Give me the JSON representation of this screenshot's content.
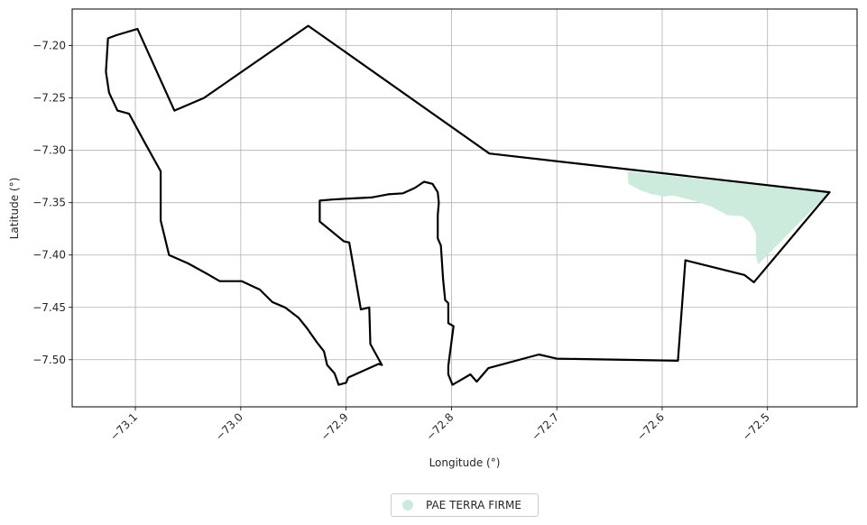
{
  "chart_data": {
    "type": "map",
    "xlabel": "Longitude (°)",
    "ylabel": "Latitude (°)",
    "xlim": [
      -73.16,
      -72.415
    ],
    "ylim": [
      -7.545,
      -7.165
    ],
    "xticks": [
      -73.1,
      -73.0,
      -72.9,
      -72.8,
      -72.7,
      -72.6,
      -72.5
    ],
    "xtick_labels": [
      "−73.1",
      "−73.0",
      "−72.9",
      "−72.8",
      "−72.7",
      "−72.6",
      "−72.5"
    ],
    "yticks": [
      -7.2,
      -7.25,
      -7.3,
      -7.35,
      -7.4,
      -7.45,
      -7.5
    ],
    "ytick_labels": [
      "−7.20",
      "−7.25",
      "−7.30",
      "−7.35",
      "−7.40",
      "−7.45",
      "−7.50"
    ],
    "grid": true,
    "legend": {
      "placement": "bottom-center",
      "entries": [
        {
          "label": "PAE TERRA FIRME",
          "color": "#cdebdc"
        }
      ]
    },
    "boundary": {
      "color": "#000000",
      "coords": [
        [
          -73.098,
          -7.184
        ],
        [
          -73.063,
          -7.262
        ],
        [
          -73.035,
          -7.25
        ],
        [
          -72.936,
          -7.181
        ],
        [
          -72.764,
          -7.303
        ],
        [
          -72.441,
          -7.34
        ],
        [
          -72.513,
          -7.426
        ],
        [
          -72.522,
          -7.419
        ],
        [
          -72.578,
          -7.405
        ],
        [
          -72.585,
          -7.5
        ],
        [
          -72.585,
          -7.501
        ],
        [
          -72.7,
          -7.499
        ],
        [
          -72.717,
          -7.495
        ],
        [
          -72.765,
          -7.508
        ],
        [
          -72.776,
          -7.521
        ],
        [
          -72.782,
          -7.514
        ],
        [
          -72.799,
          -7.524
        ],
        [
          -72.803,
          -7.514
        ],
        [
          -72.803,
          -7.506
        ],
        [
          -72.798,
          -7.468
        ],
        [
          -72.803,
          -7.465
        ],
        [
          -72.803,
          -7.446
        ],
        [
          -72.806,
          -7.443
        ],
        [
          -72.808,
          -7.423
        ],
        [
          -72.81,
          -7.391
        ],
        [
          -72.813,
          -7.384
        ],
        [
          -72.813,
          -7.362
        ],
        [
          -72.812,
          -7.35
        ],
        [
          -72.813,
          -7.34
        ],
        [
          -72.818,
          -7.332
        ],
        [
          -72.826,
          -7.33
        ],
        [
          -72.835,
          -7.336
        ],
        [
          -72.846,
          -7.341
        ],
        [
          -72.86,
          -7.342
        ],
        [
          -72.876,
          -7.345
        ],
        [
          -72.897,
          -7.346
        ],
        [
          -72.913,
          -7.347
        ],
        [
          -72.925,
          -7.348
        ],
        [
          -72.925,
          -7.368
        ],
        [
          -72.902,
          -7.387
        ],
        [
          -72.897,
          -7.388
        ],
        [
          -72.886,
          -7.452
        ],
        [
          -72.878,
          -7.45
        ],
        [
          -72.877,
          -7.485
        ],
        [
          -72.866,
          -7.505
        ],
        [
          -72.869,
          -7.504
        ],
        [
          -72.898,
          -7.517
        ],
        [
          -72.9,
          -7.522
        ],
        [
          -72.907,
          -7.524
        ],
        [
          -72.911,
          -7.513
        ],
        [
          -72.918,
          -7.505
        ],
        [
          -72.921,
          -7.492
        ],
        [
          -72.928,
          -7.483
        ],
        [
          -72.937,
          -7.47
        ],
        [
          -72.945,
          -7.46
        ],
        [
          -72.958,
          -7.45
        ],
        [
          -72.97,
          -7.445
        ],
        [
          -72.982,
          -7.433
        ],
        [
          -72.999,
          -7.425
        ],
        [
          -73.02,
          -7.425
        ],
        [
          -73.032,
          -7.418
        ],
        [
          -73.05,
          -7.408
        ],
        [
          -73.068,
          -7.4
        ],
        [
          -73.076,
          -7.367
        ],
        [
          -73.076,
          -7.32
        ],
        [
          -73.092,
          -7.291
        ],
        [
          -73.106,
          -7.265
        ],
        [
          -73.117,
          -7.262
        ],
        [
          -73.125,
          -7.245
        ],
        [
          -73.128,
          -7.225
        ],
        [
          -73.127,
          -7.21
        ],
        [
          -73.126,
          -7.193
        ],
        [
          -73.118,
          -7.19
        ],
        [
          -73.098,
          -7.184
        ]
      ]
    },
    "regions": [
      {
        "name": "PAE TERRA FIRME",
        "color": "#cdebdc",
        "coords": [
          [
            -72.633,
            -7.32
          ],
          [
            -72.441,
            -7.34
          ],
          [
            -72.509,
            -7.409
          ],
          [
            -72.511,
            -7.401
          ],
          [
            -72.511,
            -7.38
          ],
          [
            -72.517,
            -7.368
          ],
          [
            -72.524,
            -7.363
          ],
          [
            -72.538,
            -7.362
          ],
          [
            -72.553,
            -7.354
          ],
          [
            -72.57,
            -7.348
          ],
          [
            -72.59,
            -7.343
          ],
          [
            -72.598,
            -7.344
          ],
          [
            -72.61,
            -7.342
          ],
          [
            -72.621,
            -7.338
          ],
          [
            -72.632,
            -7.332
          ]
        ]
      }
    ]
  }
}
